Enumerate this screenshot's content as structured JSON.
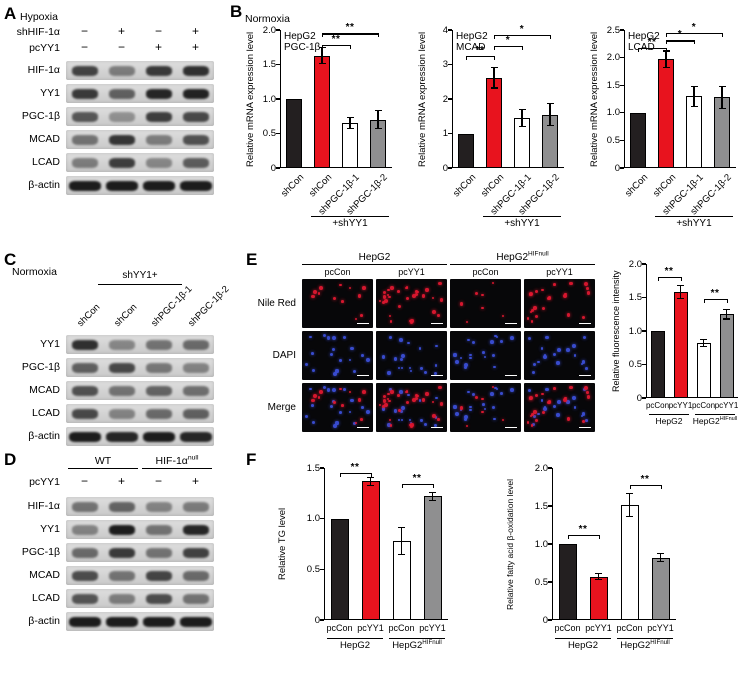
{
  "colors": {
    "bar_black": "#231f20",
    "bar_red": "#e8131e",
    "bar_white": "#ffffff",
    "bar_gray": "#8f8f90",
    "nile_red_dot": "#e01830",
    "dapi_dot": "#3b4fd8"
  },
  "panels": {
    "A": {
      "label": "A",
      "condition": "Hypoxia",
      "treatments": [
        {
          "name": "shHIF-1α",
          "values": [
            "−",
            "+",
            "−",
            "+"
          ]
        },
        {
          "name": "pcYY1",
          "values": [
            "−",
            "−",
            "+",
            "+"
          ]
        }
      ],
      "blots": [
        {
          "label": "HIF-1α",
          "bands": [
            0.75,
            0.45,
            0.8,
            0.85
          ]
        },
        {
          "label": "YY1",
          "bands": [
            0.8,
            0.6,
            0.9,
            0.92
          ]
        },
        {
          "label": "PGC-1β",
          "bands": [
            0.65,
            0.35,
            0.78,
            0.72
          ]
        },
        {
          "label": "MCAD",
          "bands": [
            0.5,
            0.82,
            0.45,
            0.68
          ]
        },
        {
          "label": "LCAD",
          "bands": [
            0.45,
            0.78,
            0.4,
            0.62
          ]
        },
        {
          "label": "β-actin",
          "bands": [
            0.95,
            0.95,
            0.95,
            0.95
          ],
          "wide": true
        }
      ]
    },
    "B": {
      "label": "B",
      "condition": "Normoxia",
      "chart_refs": [
        0,
        1,
        2
      ]
    },
    "C": {
      "label": "C",
      "condition": "Normoxia",
      "bracket_label": "shYY1+",
      "lane_labels": [
        "shCon",
        "shCon",
        "shPGC-1β-1",
        "shPGC-1β-2"
      ],
      "blots": [
        {
          "label": "YY1",
          "bands": [
            0.85,
            0.4,
            0.5,
            0.55
          ]
        },
        {
          "label": "PGC-1β",
          "bands": [
            0.6,
            0.72,
            0.48,
            0.42
          ]
        },
        {
          "label": "MCAD",
          "bands": [
            0.68,
            0.5,
            0.58,
            0.52
          ]
        },
        {
          "label": "LCAD",
          "bands": [
            0.72,
            0.42,
            0.55,
            0.6
          ]
        },
        {
          "label": "β-actin",
          "bands": [
            0.95,
            0.9,
            0.95,
            0.9
          ],
          "wide": true
        }
      ]
    },
    "D": {
      "label": "D",
      "groups": [
        {
          "base": "WT",
          "sup": ""
        },
        {
          "base": "HIF-1α",
          "sup": "null"
        }
      ],
      "treatments": [
        {
          "name": "pcYY1",
          "values": [
            "−",
            "+",
            "−",
            "+"
          ]
        }
      ],
      "blots": [
        {
          "label": "HIF-1α",
          "bands": [
            0.5,
            0.58,
            0.42,
            0.46
          ]
        },
        {
          "label": "YY1",
          "bands": [
            0.42,
            0.95,
            0.5,
            0.9
          ]
        },
        {
          "label": "PGC-1β",
          "bands": [
            0.55,
            0.8,
            0.5,
            0.76
          ]
        },
        {
          "label": "MCAD",
          "bands": [
            0.7,
            0.5,
            0.74,
            0.55
          ]
        },
        {
          "label": "LCAD",
          "bands": [
            0.66,
            0.45,
            0.7,
            0.5
          ]
        },
        {
          "label": "β-actin",
          "bands": [
            0.95,
            0.95,
            0.95,
            0.95
          ],
          "wide": true
        }
      ]
    },
    "E": {
      "label": "E",
      "groups": [
        {
          "base": "HepG2",
          "sup": ""
        },
        {
          "base": "HepG2",
          "sup": "HIFnull"
        }
      ],
      "col_labels": [
        "pcCon",
        "pcYY1",
        "pcCon",
        "pcYY1"
      ],
      "row_labels": [
        "Nile Red",
        "DAPI",
        "Merge"
      ],
      "dot_counts": {
        "nile_red": [
          12,
          30,
          7,
          22
        ],
        "dapi": [
          18,
          18,
          18,
          18
        ]
      },
      "chart_ref": 3
    },
    "F": {
      "label": "F",
      "chart_refs": [
        4,
        5
      ]
    }
  },
  "chart_data": [
    {
      "type": "bar",
      "title_lines": [
        "HepG2",
        "PGC-1β"
      ],
      "ylabel": "Relative mRNA expression level",
      "ymax": 2.0,
      "yticks": [
        "2.0",
        "1.5",
        "1.0",
        "0.5",
        "0"
      ],
      "categories": [
        "shCon",
        "shCon",
        "shPGC-1β-1",
        "shPGC-1β-2"
      ],
      "values": [
        1.0,
        1.63,
        0.65,
        0.7
      ],
      "errors": [
        0,
        0.12,
        0.08,
        0.13
      ],
      "bar_colors": [
        "black",
        "red",
        "white",
        "gray"
      ],
      "group_brackets": [
        {
          "base": "+shYY1",
          "sup": "",
          "span": [
            1,
            3
          ]
        }
      ],
      "sig": [
        {
          "a": 1,
          "b": 2,
          "text": "**",
          "y": 1.78
        },
        {
          "a": 1,
          "b": 3,
          "text": "**",
          "y": 1.95
        }
      ]
    },
    {
      "type": "bar",
      "title_lines": [
        "HepG2",
        "MCAD"
      ],
      "ylabel": "Relative mRNA expression level",
      "ymax": 4.0,
      "yticks": [
        "4",
        "3",
        "2",
        "1",
        "0"
      ],
      "categories": [
        "shCon",
        "shCon",
        "shPGC-1β-1",
        "shPGC-1β-2"
      ],
      "values": [
        1.0,
        2.62,
        1.45,
        1.55
      ],
      "errors": [
        0,
        0.3,
        0.25,
        0.33
      ],
      "bar_colors": [
        "black",
        "red",
        "white",
        "gray"
      ],
      "group_brackets": [
        {
          "base": "+shYY1",
          "sup": "",
          "span": [
            1,
            3
          ]
        }
      ],
      "sig": [
        {
          "a": 0,
          "b": 1,
          "text": "**",
          "y": 3.25
        },
        {
          "a": 1,
          "b": 2,
          "text": "*",
          "y": 3.55
        },
        {
          "a": 1,
          "b": 3,
          "text": "*",
          "y": 3.85
        }
      ]
    },
    {
      "type": "bar",
      "title_lines": [
        "HepG2",
        "LCAD"
      ],
      "ylabel": "Relative mRNA expression level",
      "ymax": 2.5,
      "yticks": [
        "2.5",
        "2.0",
        "1.5",
        "1.0",
        "0.5",
        "0"
      ],
      "categories": [
        "shCon",
        "shCon",
        "shPGC-1β-1",
        "shPGC-1β-2"
      ],
      "values": [
        1.0,
        1.97,
        1.3,
        1.28
      ],
      "errors": [
        0,
        0.15,
        0.18,
        0.2
      ],
      "bar_colors": [
        "black",
        "red",
        "white",
        "gray"
      ],
      "group_brackets": [
        {
          "base": "+shYY1",
          "sup": "",
          "span": [
            1,
            3
          ]
        }
      ],
      "sig": [
        {
          "a": 0,
          "b": 1,
          "text": "**",
          "y": 2.18
        },
        {
          "a": 1,
          "b": 2,
          "text": "*",
          "y": 2.31
        },
        {
          "a": 1,
          "b": 3,
          "text": "*",
          "y": 2.44
        }
      ]
    },
    {
      "type": "bar",
      "title_lines": [],
      "ylabel": "Relative fluorescence intensity",
      "ymax": 2.0,
      "yticks": [
        "2.0",
        "1.5",
        "1.0",
        "0.5",
        "0"
      ],
      "categories": [
        "pcCon",
        "pcYY1",
        "pcCon",
        "pcYY1"
      ],
      "values": [
        1.0,
        1.58,
        0.82,
        1.25
      ],
      "errors": [
        0,
        0.1,
        0.05,
        0.07
      ],
      "bar_colors": [
        "black",
        "red",
        "white",
        "gray"
      ],
      "group_brackets": [
        {
          "base": "HepG2",
          "sup": "",
          "span": [
            0,
            1
          ]
        },
        {
          "base": "HepG2",
          "sup": "HIFnull",
          "span": [
            2,
            3
          ]
        }
      ],
      "sig": [
        {
          "a": 0,
          "b": 1,
          "text": "**",
          "y": 1.8
        },
        {
          "a": 2,
          "b": 3,
          "text": "**",
          "y": 1.48
        }
      ]
    },
    {
      "type": "bar",
      "title_lines": [],
      "ylabel": "Relative TG level",
      "ymax": 1.5,
      "yticks": [
        "1.5",
        "1.0",
        "0.5",
        "0"
      ],
      "categories": [
        "pcCon",
        "pcYY1",
        "pcCon",
        "pcYY1"
      ],
      "values": [
        1.0,
        1.37,
        0.78,
        1.22
      ],
      "errors": [
        0,
        0.04,
        0.13,
        0.04
      ],
      "bar_colors": [
        "black",
        "red",
        "white",
        "gray"
      ],
      "group_brackets": [
        {
          "base": "HepG2",
          "sup": "",
          "span": [
            0,
            1
          ]
        },
        {
          "base": "HepG2",
          "sup": "HIFnull",
          "span": [
            2,
            3
          ]
        }
      ],
      "sig": [
        {
          "a": 0,
          "b": 1,
          "text": "**",
          "y": 1.45
        },
        {
          "a": 2,
          "b": 3,
          "text": "**",
          "y": 1.34
        }
      ]
    },
    {
      "type": "bar",
      "title_lines": [],
      "ylabel": "Relative fatty acid β-oxidation level",
      "ymax": 2.0,
      "yticks": [
        "2.0",
        "1.5",
        "1.0",
        "0.5",
        "0"
      ],
      "categories": [
        "pcCon",
        "pcYY1",
        "pcCon",
        "pcYY1"
      ],
      "values": [
        1.0,
        0.57,
        1.51,
        0.82
      ],
      "errors": [
        0,
        0.04,
        0.15,
        0.05
      ],
      "bar_colors": [
        "black",
        "red",
        "white",
        "gray"
      ],
      "group_brackets": [
        {
          "base": "HepG2",
          "sup": "",
          "span": [
            0,
            1
          ]
        },
        {
          "base": "HepG2",
          "sup": "HIFnull",
          "span": [
            2,
            3
          ]
        }
      ],
      "sig": [
        {
          "a": 0,
          "b": 1,
          "text": "**",
          "y": 1.12
        },
        {
          "a": 2,
          "b": 3,
          "text": "**",
          "y": 1.78
        }
      ]
    }
  ]
}
